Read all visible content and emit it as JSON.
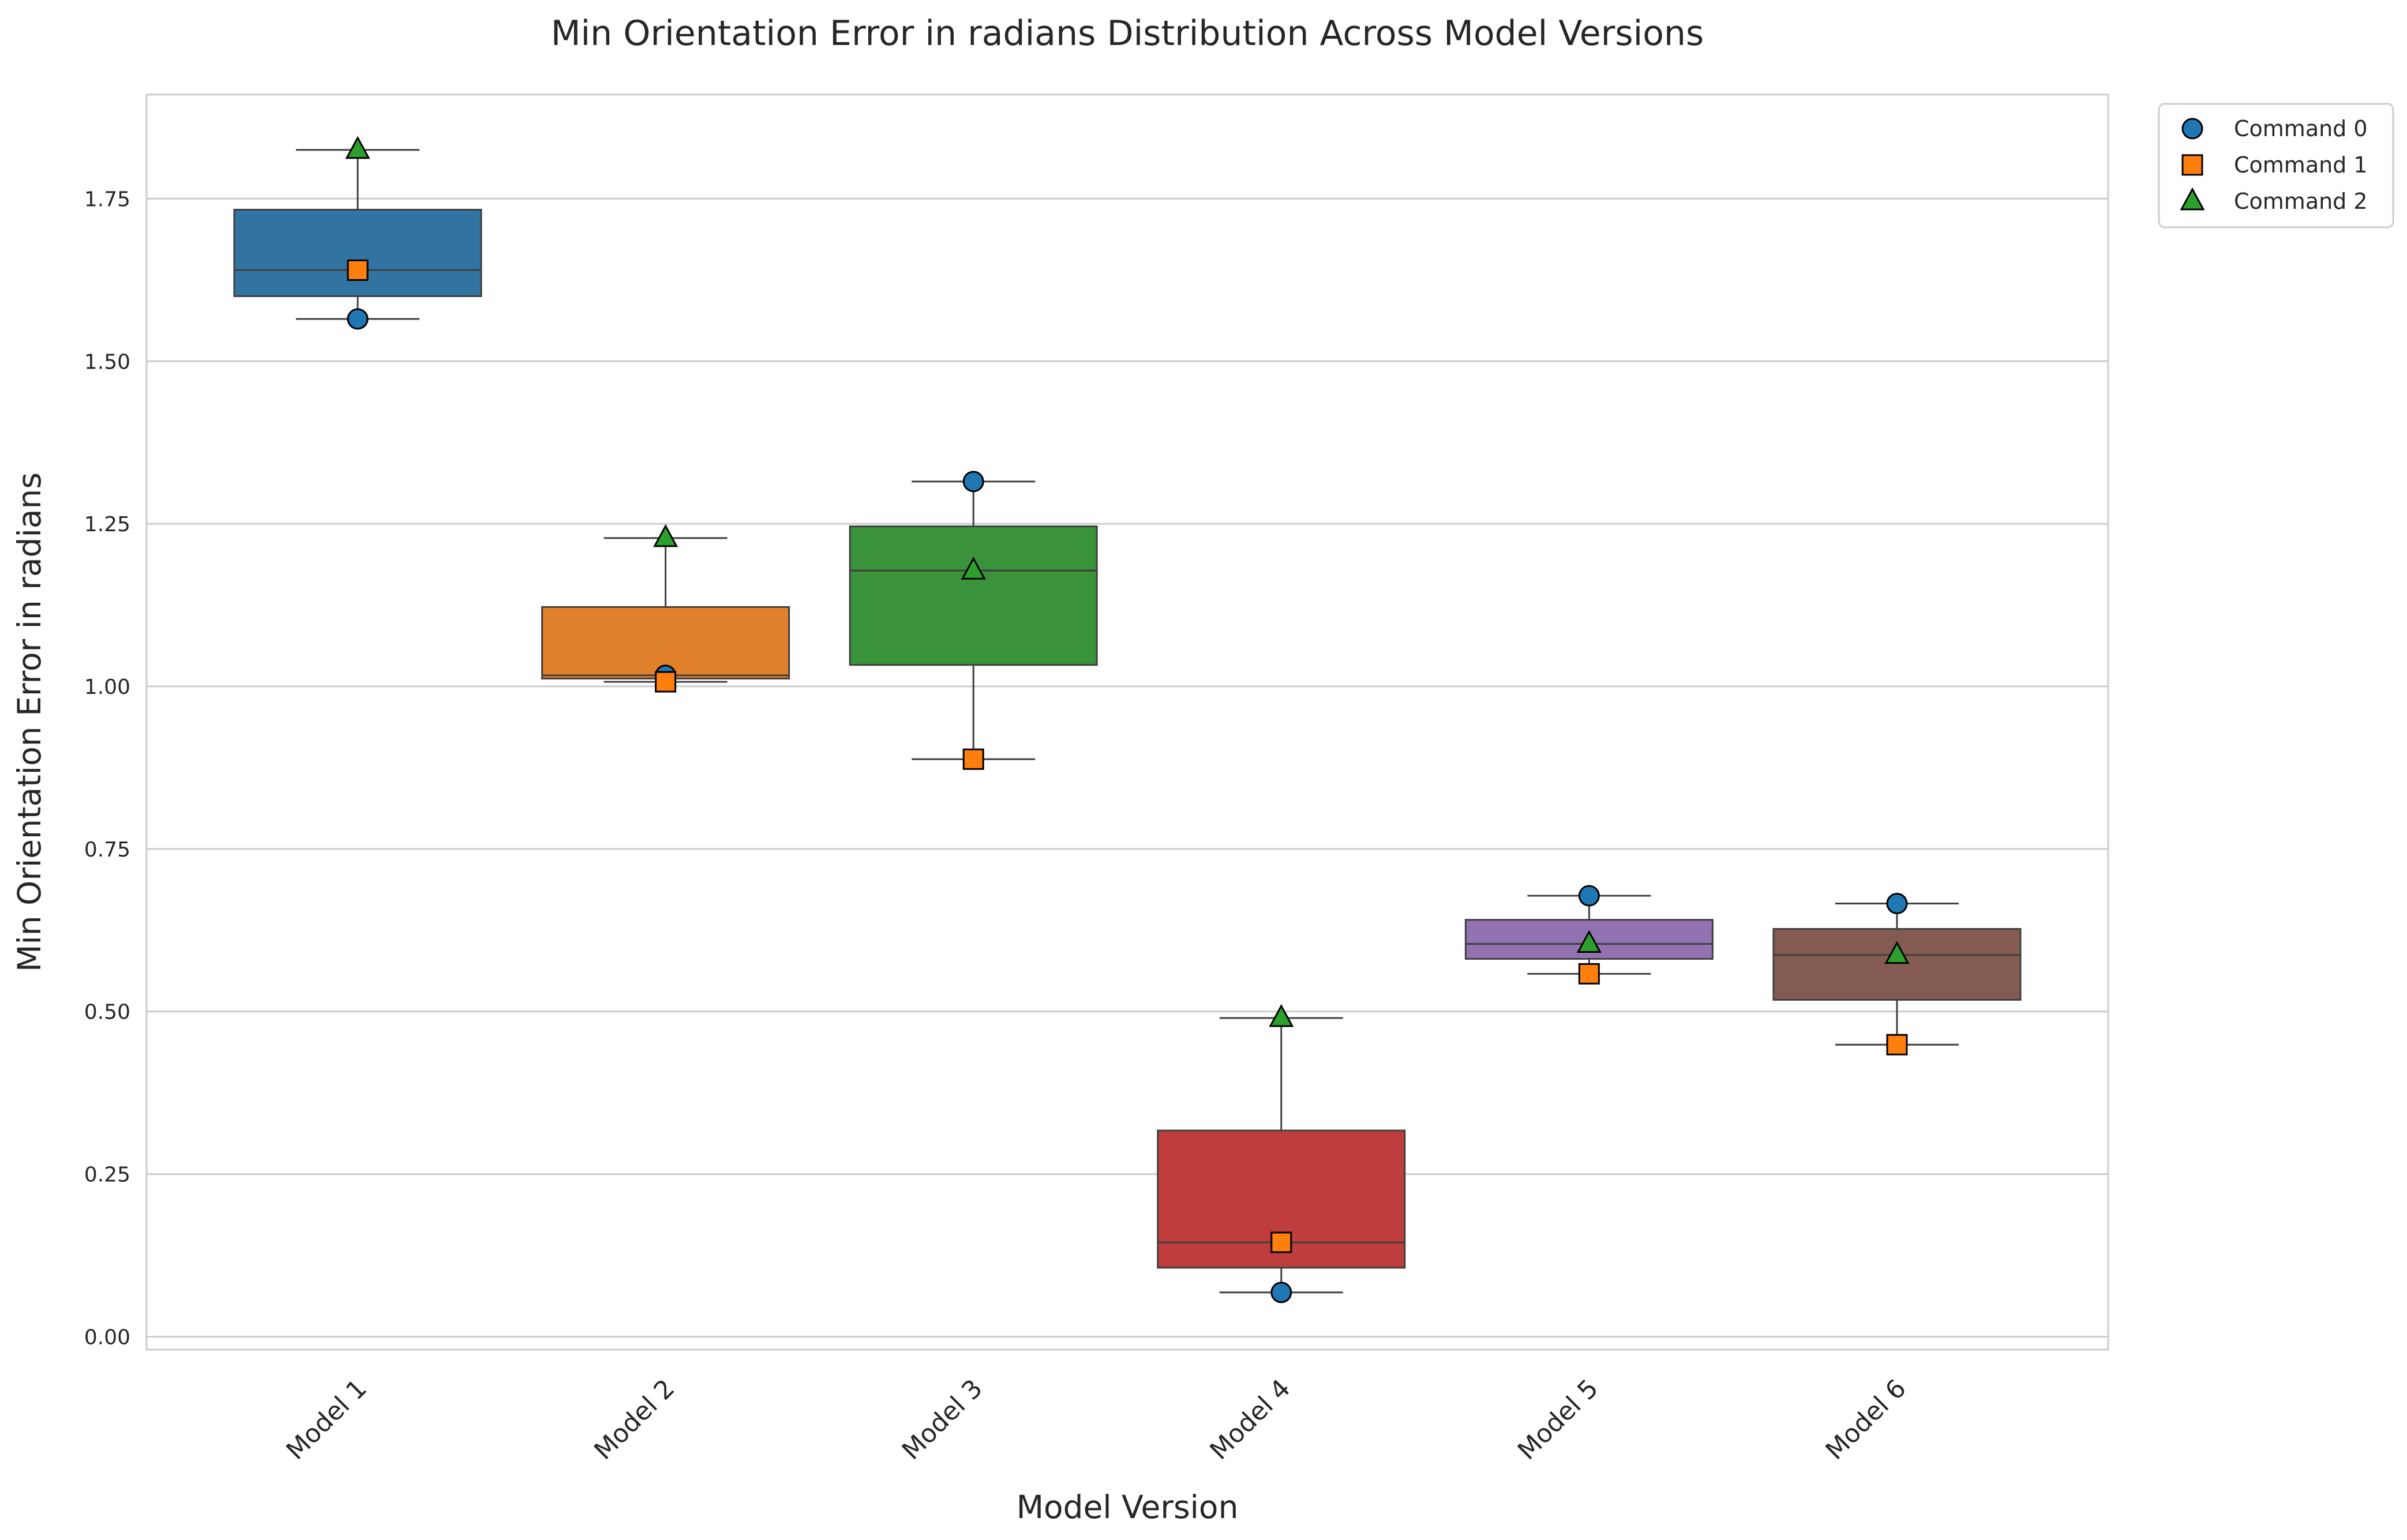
{
  "chart_data": {
    "type": "box",
    "title": "Min Orientation Error in radians Distribution Across Model Versions",
    "xlabel": "Model Version",
    "ylabel": "Min Orientation Error in radians",
    "ylim": [
      -0.02,
      1.91
    ],
    "grid": true,
    "legend_position": "top-right, outside",
    "yticks": [
      0.0,
      0.25,
      0.5,
      0.75,
      1.0,
      1.25,
      1.5,
      1.75
    ],
    "ytick_labels": [
      "0.00",
      "0.25",
      "0.50",
      "0.75",
      "1.00",
      "1.25",
      "1.50",
      "1.75"
    ],
    "categories": [
      "Model 1",
      "Model 2",
      "Model 3",
      "Model 4",
      "Model 5",
      "Model 6"
    ],
    "box_colors": [
      "#3274a1",
      "#e1812c",
      "#3a923a",
      "#c03d3e",
      "#9372b2",
      "#845b53"
    ],
    "boxes": [
      {
        "whisker_low": 1.565,
        "q1": 1.6,
        "median": 1.64,
        "q3": 1.733,
        "whisker_high": 1.825
      },
      {
        "whisker_low": 1.007,
        "q1": 1.012,
        "median": 1.017,
        "q3": 1.122,
        "whisker_high": 1.228
      },
      {
        "whisker_low": 0.888,
        "q1": 1.033,
        "median": 1.178,
        "q3": 1.246,
        "whisker_high": 1.315
      },
      {
        "whisker_low": 0.068,
        "q1": 0.106,
        "median": 0.145,
        "q3": 0.317,
        "whisker_high": 0.49
      },
      {
        "whisker_low": 0.558,
        "q1": 0.581,
        "median": 0.604,
        "q3": 0.641,
        "whisker_high": 0.678
      },
      {
        "whisker_low": 0.449,
        "q1": 0.518,
        "median": 0.587,
        "q3": 0.627,
        "whisker_high": 0.666
      }
    ],
    "series": [
      {
        "name": "Command 0",
        "marker": "circle",
        "color": "#1f77b4",
        "values": [
          1.565,
          1.017,
          1.315,
          0.068,
          0.678,
          0.666
        ]
      },
      {
        "name": "Command 1",
        "marker": "square",
        "color": "#ff7f0e",
        "values": [
          1.64,
          1.007,
          0.888,
          0.145,
          0.558,
          0.449
        ]
      },
      {
        "name": "Command 2",
        "marker": "triangle",
        "color": "#2ca02c",
        "values": [
          1.825,
          1.228,
          1.178,
          0.49,
          0.604,
          0.587
        ]
      }
    ]
  }
}
